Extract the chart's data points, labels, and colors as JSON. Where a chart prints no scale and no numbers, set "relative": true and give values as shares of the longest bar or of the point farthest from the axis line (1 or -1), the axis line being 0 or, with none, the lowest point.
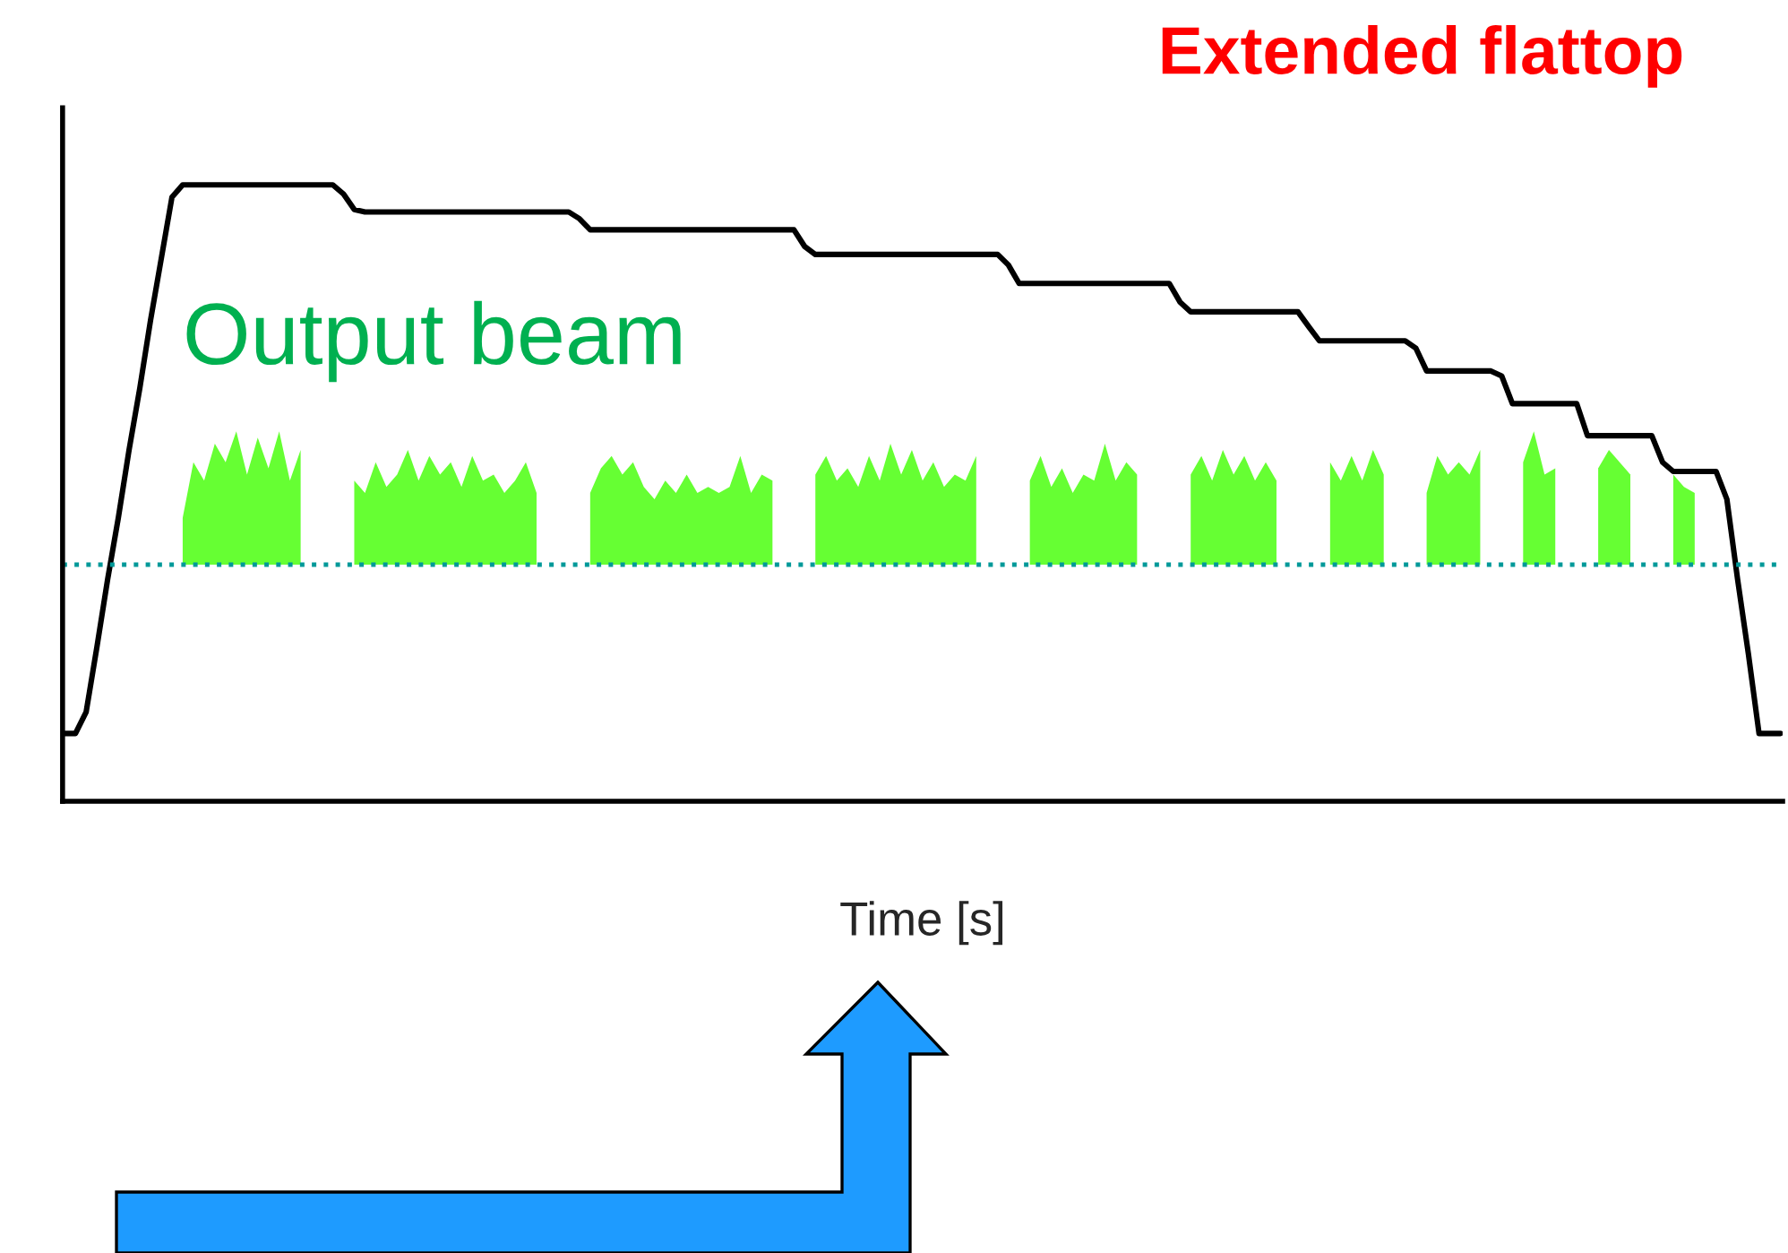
{
  "chart_data": {
    "type": "line",
    "title": "Extended flattop",
    "xlabel": "Time [s]",
    "relative": true,
    "legend": false,
    "marker": "none",
    "line_style": "solid",
    "categories": [
      null,
      null,
      null,
      null,
      null,
      null,
      null,
      null,
      null,
      null,
      null,
      null,
      null,
      null,
      null,
      null,
      null,
      null,
      null,
      null,
      null,
      null,
      null,
      null,
      null,
      null,
      null,
      null,
      null,
      null,
      null,
      null,
      null,
      null,
      null,
      null,
      null,
      null,
      null,
      null,
      null,
      null,
      null,
      null,
      null,
      null,
      null,
      null,
      null,
      null,
      null,
      null,
      null,
      null,
      null,
      null,
      null,
      null,
      null,
      null,
      null,
      null,
      null,
      null,
      null,
      null,
      null,
      null,
      null,
      null,
      null,
      null,
      null,
      null,
      null,
      null,
      null,
      null,
      null,
      null,
      null,
      null,
      null,
      null,
      null,
      null,
      null,
      null,
      null,
      null,
      null,
      null,
      null,
      null,
      null,
      null,
      null,
      null,
      null,
      null,
      null,
      null,
      null,
      null,
      null,
      null,
      null,
      null,
      null,
      null,
      null,
      null,
      null,
      null,
      null,
      null,
      null,
      null,
      null,
      null,
      null,
      null,
      null,
      null,
      null,
      null,
      null,
      null,
      null,
      null,
      null,
      null,
      null,
      null,
      null,
      null,
      null,
      null,
      null,
      null,
      null,
      null,
      null,
      null,
      null,
      null,
      null,
      null,
      null,
      null,
      null,
      null,
      null,
      null,
      null,
      null,
      null,
      null,
      null,
      null,
      null
    ],
    "series": [
      {
        "color": "#000000",
        "values": [
          0.11,
          0.11,
          0.145,
          0.25,
          0.36,
          0.46,
          0.57,
          0.67,
          0.78,
          0.88,
          0.98,
          1,
          1,
          1,
          1,
          1,
          1,
          1,
          1,
          1,
          1,
          1,
          1,
          1,
          1,
          1,
          0.985,
          0.96,
          0.956,
          0.956,
          0.956,
          0.956,
          0.956,
          0.956,
          0.956,
          0.956,
          0.956,
          0.956,
          0.956,
          0.956,
          0.956,
          0.956,
          0.956,
          0.956,
          0.956,
          0.956,
          0.956,
          0.956,
          0.945,
          0.927,
          0.927,
          0.927,
          0.927,
          0.927,
          0.927,
          0.927,
          0.927,
          0.927,
          0.927,
          0.927,
          0.927,
          0.927,
          0.927,
          0.927,
          0.927,
          0.927,
          0.927,
          0.927,
          0.927,
          0.9,
          0.887,
          0.887,
          0.887,
          0.887,
          0.887,
          0.887,
          0.887,
          0.887,
          0.887,
          0.887,
          0.887,
          0.887,
          0.887,
          0.887,
          0.887,
          0.887,
          0.887,
          0.887,
          0.87,
          0.84,
          0.84,
          0.84,
          0.84,
          0.84,
          0.84,
          0.84,
          0.84,
          0.84,
          0.84,
          0.84,
          0.84,
          0.84,
          0.84,
          0.84,
          0.81,
          0.794,
          0.794,
          0.794,
          0.794,
          0.794,
          0.794,
          0.794,
          0.794,
          0.794,
          0.794,
          0.794,
          0.77,
          0.747,
          0.747,
          0.747,
          0.747,
          0.747,
          0.747,
          0.747,
          0.747,
          0.747,
          0.735,
          0.698,
          0.698,
          0.698,
          0.698,
          0.698,
          0.698,
          0.698,
          0.69,
          0.645,
          0.645,
          0.645,
          0.645,
          0.645,
          0.645,
          0.645,
          0.593,
          0.593,
          0.593,
          0.593,
          0.593,
          0.593,
          0.593,
          0.55,
          0.535,
          0.535,
          0.535,
          0.535,
          0.535,
          0.49,
          0.36,
          0.24,
          0.11,
          0.11,
          0.11
        ]
      },
      {
        "type": "area",
        "name": "Output beam",
        "color": "#66ff33",
        "values": [
          null,
          null,
          null,
          null,
          null,
          null,
          null,
          null,
          null,
          null,
          null,
          0.46,
          0.55,
          0.52,
          0.58,
          0.55,
          0.6,
          0.53,
          0.59,
          0.54,
          0.6,
          0.52,
          0.57,
          null,
          null,
          null,
          null,
          0.52,
          0.5,
          0.55,
          0.51,
          0.53,
          0.57,
          0.52,
          0.56,
          0.53,
          0.55,
          0.51,
          0.56,
          0.52,
          0.53,
          0.5,
          0.52,
          0.55,
          0.5,
          null,
          null,
          null,
          null,
          0.5,
          0.54,
          0.56,
          0.53,
          0.55,
          0.51,
          0.49,
          0.52,
          0.5,
          0.53,
          0.5,
          0.51,
          0.5,
          0.51,
          0.56,
          0.5,
          0.53,
          0.52,
          null,
          null,
          null,
          0.53,
          0.56,
          0.52,
          0.54,
          0.51,
          0.56,
          0.52,
          0.58,
          0.53,
          0.57,
          0.52,
          0.55,
          0.51,
          0.53,
          0.52,
          0.56,
          null,
          null,
          null,
          null,
          0.52,
          0.56,
          0.51,
          0.54,
          0.5,
          0.53,
          0.52,
          0.58,
          0.52,
          0.55,
          0.53,
          null,
          null,
          null,
          null,
          0.53,
          0.56,
          0.52,
          0.57,
          0.53,
          0.56,
          0.52,
          0.55,
          0.52,
          null,
          null,
          null,
          null,
          0.55,
          0.52,
          0.56,
          0.52,
          0.57,
          0.53,
          null,
          null,
          null,
          0.5,
          0.56,
          0.53,
          0.55,
          0.53,
          0.57,
          null,
          null,
          null,
          0.55,
          0.6,
          0.53,
          0.54,
          null,
          null,
          null,
          0.54,
          0.57,
          0.55,
          0.53,
          null,
          null,
          null,
          0.53,
          0.51,
          0.5,
          null,
          null,
          null,
          null,
          null,
          null,
          null,
          null
        ]
      }
    ],
    "ref_lines": [
      {
        "axis": "y",
        "value": 0.384,
        "color": "#009999",
        "line_style": "dotted"
      }
    ]
  }
}
